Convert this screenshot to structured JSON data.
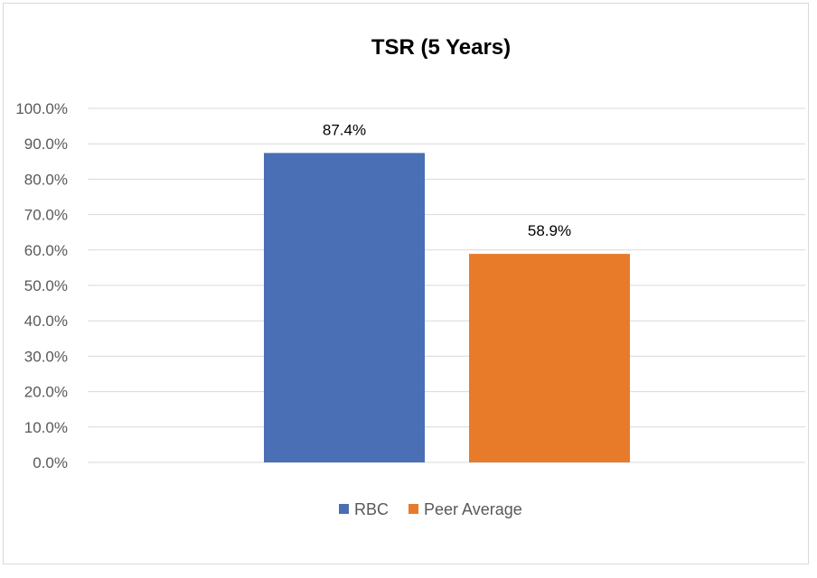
{
  "chart_data": {
    "type": "bar",
    "title": "TSR (5 Years)",
    "categories": [
      "RBC",
      "Peer Average"
    ],
    "values": [
      87.4,
      58.9
    ],
    "data_labels": [
      "87.4%",
      "58.9%"
    ],
    "colors": [
      "#4a6fb5",
      "#e87b2a"
    ],
    "ylim": [
      0,
      100
    ],
    "yticks": [
      0,
      10,
      20,
      30,
      40,
      50,
      60,
      70,
      80,
      90,
      100
    ],
    "ytick_labels": [
      "0.0%",
      "10.0%",
      "20.0%",
      "30.0%",
      "40.0%",
      "50.0%",
      "60.0%",
      "70.0%",
      "80.0%",
      "90.0%",
      "100.0%"
    ],
    "grid": true,
    "legend": {
      "position": "bottom",
      "entries": [
        "RBC",
        "Peer Average"
      ]
    }
  }
}
